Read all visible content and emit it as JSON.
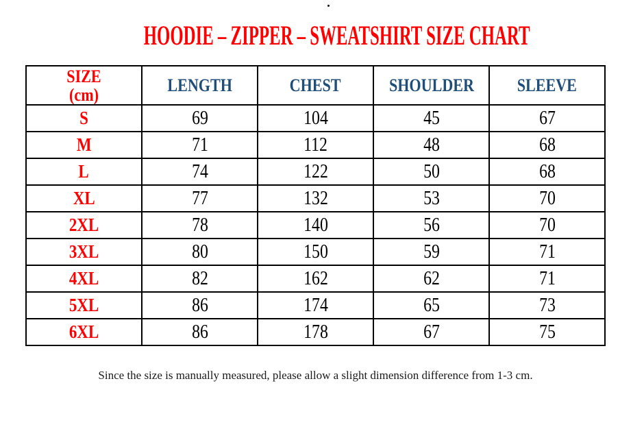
{
  "page": {
    "top_dot": ".",
    "title": "HOODIE – ZIPPER – SWEATSHIRT SIZE CHART",
    "footer_note": "Since the size is manually measured, please allow a slight dimension difference from 1-3 cm."
  },
  "colors": {
    "title_red": "#FF0000",
    "header_blue": "#1F4E79",
    "value_black": "#000000",
    "border_black": "#000000",
    "background": "#FFFFFF"
  },
  "table": {
    "size_header_line1": "SIZE",
    "size_header_line2": "(cm)",
    "headers": [
      "LENGTH",
      "CHEST",
      "SHOULDER",
      "SLEEVE"
    ],
    "rows": [
      {
        "label": "S",
        "values": [
          "69",
          "104",
          "45",
          "67"
        ]
      },
      {
        "label": "M",
        "values": [
          "71",
          "112",
          "48",
          "68"
        ]
      },
      {
        "label": "L",
        "values": [
          "74",
          "122",
          "50",
          "68"
        ]
      },
      {
        "label": "XL",
        "values": [
          "77",
          "132",
          "53",
          "70"
        ]
      },
      {
        "label": "2XL",
        "values": [
          "78",
          "140",
          "56",
          "70"
        ]
      },
      {
        "label": "3XL",
        "values": [
          "80",
          "150",
          "59",
          "71"
        ]
      },
      {
        "label": "4XL",
        "values": [
          "82",
          "162",
          "62",
          "71"
        ]
      },
      {
        "label": "5XL",
        "values": [
          "86",
          "174",
          "65",
          "73"
        ]
      },
      {
        "label": "6XL",
        "values": [
          "86",
          "178",
          "67",
          "75"
        ]
      }
    ]
  },
  "chart_data": {
    "type": "table",
    "title": "HOODIE – ZIPPER – SWEATSHIRT SIZE CHART",
    "columns": [
      "SIZE (cm)",
      "LENGTH",
      "CHEST",
      "SHOULDER",
      "SLEEVE"
    ],
    "rows": [
      [
        "S",
        69,
        104,
        45,
        67
      ],
      [
        "M",
        71,
        112,
        48,
        68
      ],
      [
        "L",
        74,
        122,
        50,
        68
      ],
      [
        "XL",
        77,
        132,
        53,
        70
      ],
      [
        "2XL",
        78,
        140,
        56,
        70
      ],
      [
        "3XL",
        80,
        150,
        59,
        71
      ],
      [
        "4XL",
        82,
        162,
        62,
        71
      ],
      [
        "5XL",
        86,
        174,
        65,
        73
      ],
      [
        "6XL",
        86,
        178,
        67,
        75
      ]
    ],
    "note": "Since the size is manually measured, please allow a slight dimension difference from 1-3 cm."
  }
}
